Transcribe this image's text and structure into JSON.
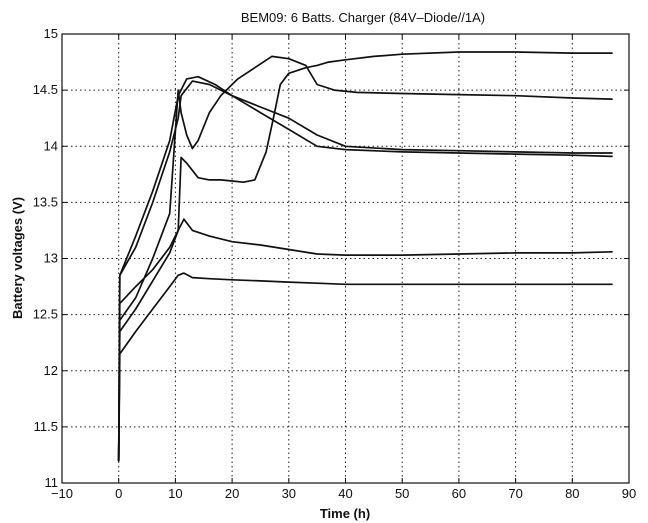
{
  "chart_data": {
    "type": "line",
    "title": "BEM09: 6 Batts. Charger (84V–Diode//1A)",
    "xlabel": "Time (h)",
    "ylabel": "Battery voltages (V)",
    "xlim": [
      -10,
      90
    ],
    "ylim": [
      11,
      15
    ],
    "xticks": [
      -10,
      0,
      10,
      20,
      30,
      40,
      50,
      60,
      70,
      80,
      90
    ],
    "yticks": [
      11,
      11.5,
      12,
      12.5,
      13,
      13.5,
      14,
      14.5,
      15
    ],
    "xtick_labels": [
      "−10",
      "0",
      "10",
      "20",
      "30",
      "40",
      "50",
      "60",
      "70",
      "80",
      "90"
    ],
    "ytick_labels": [
      "11",
      "11.5",
      "12",
      "12.5",
      "13",
      "13.5",
      "14",
      "14.5",
      "15"
    ],
    "grid": true,
    "series": [
      {
        "x": [
          0,
          0.2,
          3,
          6,
          9,
          10.5,
          12,
          14,
          17,
          20,
          25,
          30,
          35,
          40,
          50,
          60,
          70,
          80,
          87
        ],
        "y": [
          11.2,
          12.85,
          13.2,
          13.6,
          14.05,
          14.45,
          14.6,
          14.62,
          14.55,
          14.45,
          14.3,
          14.15,
          14.0,
          13.97,
          13.95,
          13.94,
          13.93,
          13.92,
          13.91
        ]
      },
      {
        "x": [
          0,
          0.2,
          3,
          6,
          9,
          10.5,
          11,
          13,
          16,
          20,
          25,
          30,
          35,
          40,
          50,
          60,
          70,
          80,
          87
        ],
        "y": [
          11.2,
          12.85,
          13.1,
          13.5,
          13.95,
          14.25,
          14.45,
          14.58,
          14.55,
          14.45,
          14.35,
          14.25,
          14.1,
          14.0,
          13.97,
          13.96,
          13.95,
          13.94,
          13.94
        ]
      },
      {
        "x": [
          0,
          0.2,
          3,
          6,
          9,
          10.5,
          11,
          12,
          13,
          14,
          16,
          18,
          21,
          24,
          27,
          30,
          33,
          35,
          38,
          42,
          50,
          60,
          70,
          80,
          87
        ],
        "y": [
          11.2,
          12.45,
          12.65,
          13.0,
          13.4,
          14.5,
          14.3,
          14.1,
          13.98,
          14.05,
          14.3,
          14.45,
          14.6,
          14.7,
          14.8,
          14.78,
          14.72,
          14.55,
          14.5,
          14.48,
          14.47,
          14.46,
          14.45,
          14.43,
          14.42
        ]
      },
      {
        "x": [
          0,
          0.2,
          3,
          6,
          9,
          10.5,
          11,
          12,
          14,
          16,
          18,
          20,
          22,
          24,
          26,
          27.5,
          28.5,
          30,
          33,
          35,
          37,
          40,
          45,
          50,
          60,
          70,
          80,
          87
        ],
        "y": [
          11.2,
          12.6,
          12.75,
          12.9,
          13.1,
          13.25,
          13.9,
          13.85,
          13.72,
          13.7,
          13.7,
          13.69,
          13.68,
          13.7,
          13.95,
          14.3,
          14.55,
          14.65,
          14.7,
          14.72,
          14.75,
          14.77,
          14.8,
          14.82,
          14.84,
          14.84,
          14.83,
          14.83
        ]
      },
      {
        "x": [
          0,
          0.2,
          3,
          6,
          9,
          10.5,
          11.5,
          13,
          16,
          20,
          25,
          30,
          35,
          40,
          50,
          60,
          70,
          80,
          87
        ],
        "y": [
          11.2,
          12.35,
          12.55,
          12.8,
          13.05,
          13.25,
          13.35,
          13.25,
          13.2,
          13.15,
          13.12,
          13.08,
          13.04,
          13.03,
          13.03,
          13.04,
          13.05,
          13.05,
          13.06
        ]
      },
      {
        "x": [
          0,
          0.2,
          3,
          6,
          9,
          10.5,
          11.5,
          13,
          16,
          20,
          25,
          30,
          35,
          40,
          50,
          60,
          70,
          80,
          87
        ],
        "y": [
          11.2,
          12.15,
          12.35,
          12.55,
          12.75,
          12.85,
          12.87,
          12.83,
          12.82,
          12.81,
          12.8,
          12.79,
          12.78,
          12.77,
          12.77,
          12.77,
          12.77,
          12.77,
          12.77
        ]
      }
    ]
  }
}
